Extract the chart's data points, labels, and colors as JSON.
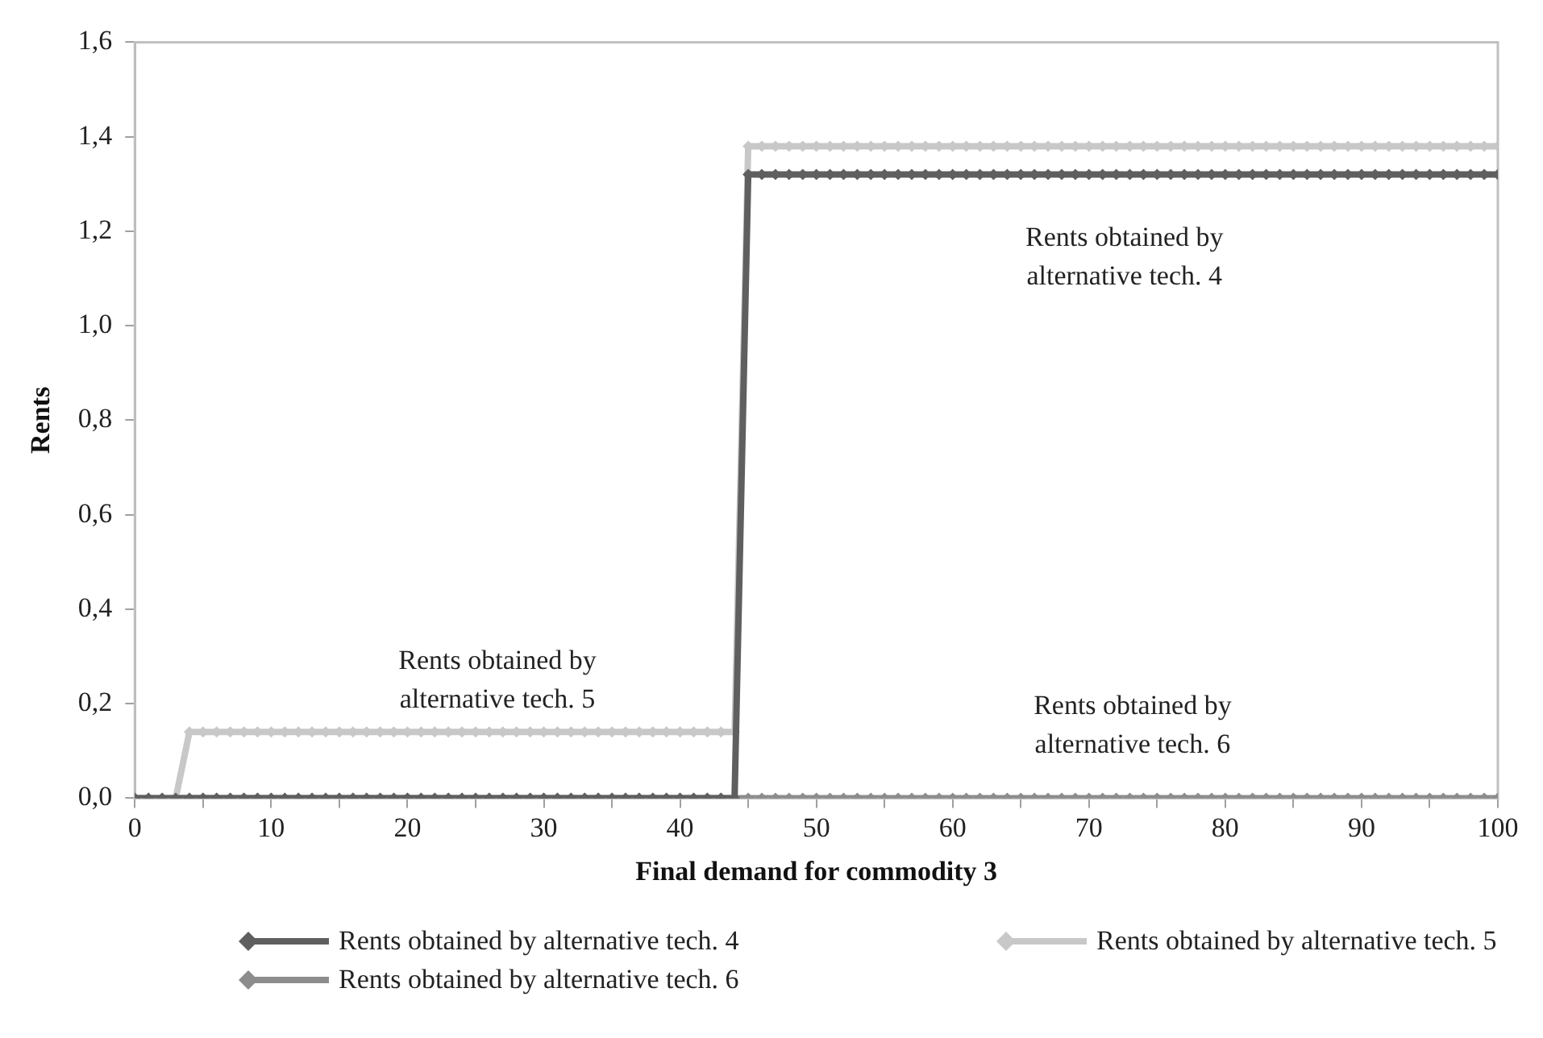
{
  "chart_data": {
    "type": "line",
    "xlabel": "Final demand for commodity 3",
    "ylabel": "Rents",
    "x": [
      0,
      1,
      2,
      3,
      4,
      5,
      6,
      7,
      8,
      9,
      10,
      11,
      12,
      13,
      14,
      15,
      16,
      17,
      18,
      19,
      20,
      21,
      22,
      23,
      24,
      25,
      26,
      27,
      28,
      29,
      30,
      31,
      32,
      33,
      34,
      35,
      36,
      37,
      38,
      39,
      40,
      41,
      42,
      43,
      44,
      45,
      46,
      47,
      48,
      49,
      50,
      51,
      52,
      53,
      54,
      55,
      56,
      57,
      58,
      59,
      60,
      61,
      62,
      63,
      64,
      65,
      66,
      67,
      68,
      69,
      70,
      71,
      72,
      73,
      74,
      75,
      76,
      77,
      78,
      79,
      80,
      81,
      82,
      83,
      84,
      85,
      86,
      87,
      88,
      89,
      90,
      91,
      92,
      93,
      94,
      95,
      96,
      97,
      98,
      99,
      100
    ],
    "series": [
      {
        "name": "Rents obtained by alternative tech. 4",
        "color": "#5f5f5f",
        "values": [
          0,
          0,
          0,
          0,
          0,
          0,
          0,
          0,
          0,
          0,
          0,
          0,
          0,
          0,
          0,
          0,
          0,
          0,
          0,
          0,
          0,
          0,
          0,
          0,
          0,
          0,
          0,
          0,
          0,
          0,
          0,
          0,
          0,
          0,
          0,
          0,
          0,
          0,
          0,
          0,
          0,
          0,
          0,
          0,
          0,
          1.32,
          1.32,
          1.32,
          1.32,
          1.32,
          1.32,
          1.32,
          1.32,
          1.32,
          1.32,
          1.32,
          1.32,
          1.32,
          1.32,
          1.32,
          1.32,
          1.32,
          1.32,
          1.32,
          1.32,
          1.32,
          1.32,
          1.32,
          1.32,
          1.32,
          1.32,
          1.32,
          1.32,
          1.32,
          1.32,
          1.32,
          1.32,
          1.32,
          1.32,
          1.32,
          1.32,
          1.32,
          1.32,
          1.32,
          1.32,
          1.32,
          1.32,
          1.32,
          1.32,
          1.32,
          1.32,
          1.32,
          1.32,
          1.32,
          1.32,
          1.32,
          1.32,
          1.32,
          1.32,
          1.32,
          1.32
        ]
      },
      {
        "name": "Rents obtained by alternative tech. 5",
        "color": "#c8c8c8",
        "values": [
          0,
          0,
          0,
          0,
          0.14,
          0.14,
          0.14,
          0.14,
          0.14,
          0.14,
          0.14,
          0.14,
          0.14,
          0.14,
          0.14,
          0.14,
          0.14,
          0.14,
          0.14,
          0.14,
          0.14,
          0.14,
          0.14,
          0.14,
          0.14,
          0.14,
          0.14,
          0.14,
          0.14,
          0.14,
          0.14,
          0.14,
          0.14,
          0.14,
          0.14,
          0.14,
          0.14,
          0.14,
          0.14,
          0.14,
          0.14,
          0.14,
          0.14,
          0.14,
          0.14,
          1.38,
          1.38,
          1.38,
          1.38,
          1.38,
          1.38,
          1.38,
          1.38,
          1.38,
          1.38,
          1.38,
          1.38,
          1.38,
          1.38,
          1.38,
          1.38,
          1.38,
          1.38,
          1.38,
          1.38,
          1.38,
          1.38,
          1.38,
          1.38,
          1.38,
          1.38,
          1.38,
          1.38,
          1.38,
          1.38,
          1.38,
          1.38,
          1.38,
          1.38,
          1.38,
          1.38,
          1.38,
          1.38,
          1.38,
          1.38,
          1.38,
          1.38,
          1.38,
          1.38,
          1.38,
          1.38,
          1.38,
          1.38,
          1.38,
          1.38,
          1.38,
          1.38,
          1.38,
          1.38,
          1.38,
          1.38
        ]
      },
      {
        "name": "Rents obtained by alternative tech. 6",
        "color": "#8c8c8c",
        "values": [
          0,
          0,
          0,
          0,
          0,
          0,
          0,
          0,
          0,
          0,
          0,
          0,
          0,
          0,
          0,
          0,
          0,
          0,
          0,
          0,
          0,
          0,
          0,
          0,
          0,
          0,
          0,
          0,
          0,
          0,
          0,
          0,
          0,
          0,
          0,
          0,
          0,
          0,
          0,
          0,
          0,
          0,
          0,
          0,
          0,
          0,
          0,
          0,
          0,
          0,
          0,
          0,
          0,
          0,
          0,
          0,
          0,
          0,
          0,
          0,
          0,
          0,
          0,
          0,
          0,
          0,
          0,
          0,
          0,
          0,
          0,
          0,
          0,
          0,
          0,
          0,
          0,
          0,
          0,
          0,
          0,
          0,
          0,
          0,
          0,
          0,
          0,
          0,
          0,
          0,
          0,
          0,
          0,
          0,
          0,
          0,
          0,
          0,
          0,
          0,
          0
        ]
      }
    ],
    "xlim": [
      0,
      100
    ],
    "xticks": [
      0,
      {
        "value": 5,
        "label": null
      },
      10,
      {
        "value": 15,
        "label": null
      },
      20,
      {
        "value": 25,
        "label": null
      },
      30,
      {
        "value": 35,
        "label": null
      },
      40,
      {
        "value": 45,
        "label": null
      },
      50,
      {
        "value": 55,
        "label": null
      },
      60,
      {
        "value": 65,
        "label": null
      },
      70,
      {
        "value": 75,
        "label": null
      },
      80,
      {
        "value": 85,
        "label": null
      },
      90,
      {
        "value": 95,
        "label": null
      },
      100
    ],
    "ylim": [
      0,
      1.6
    ],
    "yticks": [
      {
        "value": 0,
        "label": "0,0"
      },
      {
        "value": 0.2,
        "label": "0,2"
      },
      {
        "value": 0.4,
        "label": "0,4"
      },
      {
        "value": 0.6,
        "label": "0,6"
      },
      {
        "value": 0.8,
        "label": "0,8"
      },
      {
        "value": 1.0,
        "label": "1,0"
      },
      {
        "value": 1.2,
        "label": "1,2"
      },
      {
        "value": 1.4,
        "label": "1,4"
      },
      {
        "value": 1.6,
        "label": "1,6"
      }
    ],
    "annotations": [
      "Rents obtained by\nalternative tech. 4",
      "Rents obtained by\nalternative tech. 5",
      "Rents obtained by\nalternative tech. 6"
    ],
    "grid": false,
    "legend": "bottom",
    "marker": "diamond",
    "line_style": "solid"
  }
}
